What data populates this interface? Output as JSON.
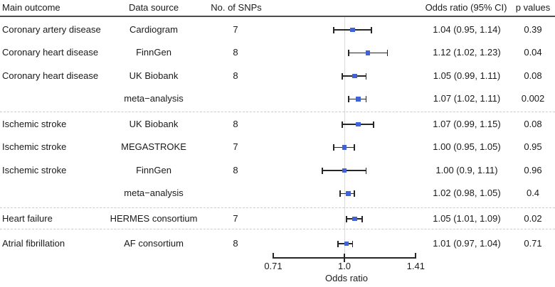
{
  "header": {
    "main_outcome": "Main outcome",
    "data_source": "Data source",
    "snps": "No. of SNPs",
    "or_ci": "Odds ratio (95% CI)",
    "p_values": "p values"
  },
  "chart_data": {
    "type": "forest",
    "title": "",
    "scale": "log",
    "axis": {
      "label": "Odds ratio",
      "ticks": [
        0.71,
        1.0,
        1.41
      ],
      "tick_labels": [
        "0.71",
        "1.0",
        "1.41"
      ],
      "xlim": [
        0.71,
        1.41
      ]
    },
    "reference_value": 1.0,
    "rows": [
      {
        "outcome": "Coronary artery disease",
        "source": "Cardiogram",
        "snps": "7",
        "or": 1.04,
        "ci_low": 0.95,
        "ci_high": 1.14,
        "or_ci_label": "1.04 (0.95, 1.14)",
        "p": "0.39"
      },
      {
        "outcome": "Coronary heart disease",
        "source": "FinnGen",
        "snps": "8",
        "or": 1.12,
        "ci_low": 1.02,
        "ci_high": 1.23,
        "or_ci_label": "1.12 (1.02, 1.23)",
        "p": "0.04"
      },
      {
        "outcome": "Coronary heart disease",
        "source": "UK Biobank",
        "snps": "8",
        "or": 1.05,
        "ci_low": 0.99,
        "ci_high": 1.11,
        "or_ci_label": "1.05 (0.99, 1.11)",
        "p": "0.08"
      },
      {
        "outcome": "",
        "source": "meta−analysis",
        "snps": "",
        "or": 1.07,
        "ci_low": 1.02,
        "ci_high": 1.11,
        "or_ci_label": "1.07 (1.02, 1.11)",
        "p": "0.002"
      },
      {
        "outcome": "Ischemic stroke",
        "source": "UK Biobank",
        "snps": "8",
        "or": 1.07,
        "ci_low": 0.99,
        "ci_high": 1.15,
        "or_ci_label": "1.07 (0.99, 1.15)",
        "p": "0.08"
      },
      {
        "outcome": "Ischemic stroke",
        "source": "MEGASTROKE",
        "snps": "7",
        "or": 1.0,
        "ci_low": 0.95,
        "ci_high": 1.05,
        "or_ci_label": "1.00 (0.95, 1.05)",
        "p": "0.95"
      },
      {
        "outcome": "Ischemic stroke",
        "source": "FinnGen",
        "snps": "8",
        "or": 1.0,
        "ci_low": 0.9,
        "ci_high": 1.11,
        "or_ci_label": "1.00 (0.9, 1.11)",
        "p": "0.96"
      },
      {
        "outcome": "",
        "source": "meta−analysis",
        "snps": "",
        "or": 1.02,
        "ci_low": 0.98,
        "ci_high": 1.05,
        "or_ci_label": "1.02 (0.98, 1.05)",
        "p": "0.4"
      },
      {
        "outcome": "Heart failure",
        "source": "HERMES consortium",
        "snps": "7",
        "or": 1.05,
        "ci_low": 1.01,
        "ci_high": 1.09,
        "or_ci_label": "1.05 (1.01, 1.09)",
        "p": "0.02"
      },
      {
        "outcome": "Atrial fibrillation",
        "source": "AF consortium",
        "snps": "8",
        "or": 1.01,
        "ci_low": 0.97,
        "ci_high": 1.04,
        "or_ci_label": "1.01 (0.97, 1.04)",
        "p": "0.71"
      }
    ]
  },
  "colors": {
    "marker": "#3f63d7",
    "ci_bar": "#262626",
    "reference_line": "#d9d9d9",
    "separator_dash": "#cccccc",
    "header_rule": "#4d4d4d",
    "text": "#1a1a1a"
  }
}
